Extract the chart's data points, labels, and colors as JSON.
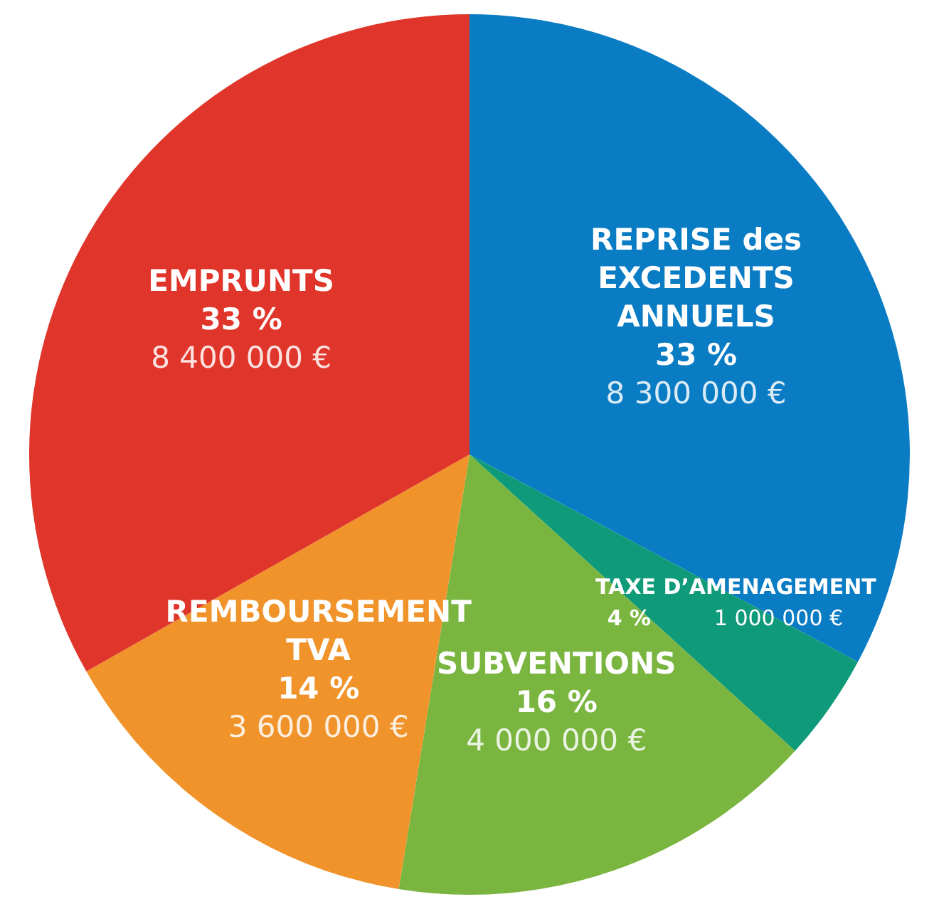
{
  "chart_data": {
    "type": "pie",
    "categories": [
      "REPRISE des EXCEDENTS ANNUELS",
      "TAXE D’AMENAGEMENT",
      "SUBVENTIONS",
      "REMBOURSEMENT TVA",
      "EMPRUNTS"
    ],
    "values": [
      8300000,
      1000000,
      4000000,
      3600000,
      8400000
    ],
    "value_labels": [
      "33 %\n8 300 000 €",
      "4 %\n1 000 000 €",
      "16 %\n4 000 000 €",
      "14 %\n3 600 000 €",
      "33 %\n8 400 000 €"
    ],
    "colors": [
      "#0a7cc4",
      "#0f9a7a",
      "#7ab540",
      "#f0932a",
      "#e0352a"
    ]
  }
}
